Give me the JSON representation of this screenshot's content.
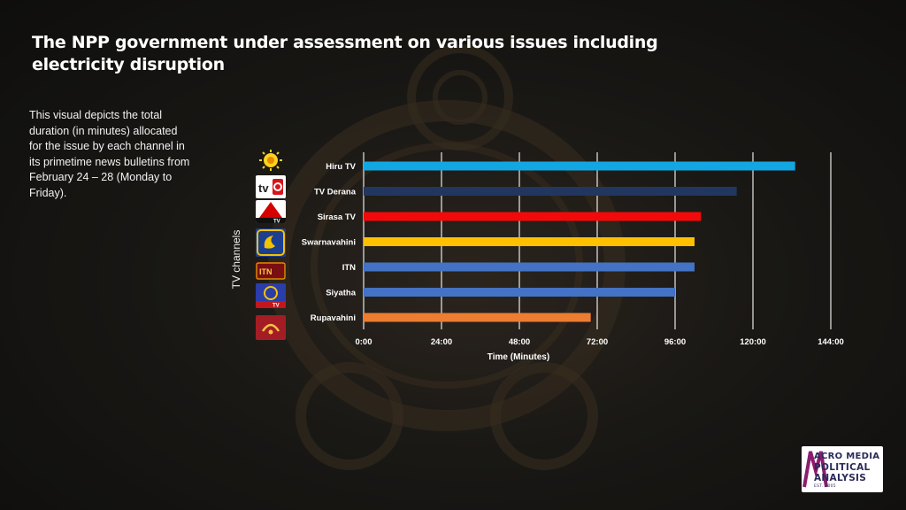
{
  "header": {
    "title": "The NPP government under assessment on various issues including electricity disruption"
  },
  "description": "This visual depicts the total duration  (in minutes) allocated for the issue by each channel in its primetime news bulletins from February 24 – 28 (Monday to Friday).",
  "logos": [
    {
      "icon": "hiru-tv-logo-icon"
    },
    {
      "icon": "tv-derana-logo-icon",
      "text": "tv"
    },
    {
      "icon": "sirasa-tv-logo-icon",
      "text": "TV"
    },
    {
      "icon": "swarnavahini-logo-icon"
    },
    {
      "icon": "itn-logo-icon",
      "text": "ITN"
    },
    {
      "icon": "siyatha-tv-logo-icon",
      "text": "TV"
    },
    {
      "icon": "rupavahini-logo-icon"
    }
  ],
  "chart_data": {
    "type": "bar",
    "orientation": "horizontal",
    "title": "",
    "xlabel": "Time (Minutes)",
    "ylabel": "TV channels",
    "categories": [
      "Hiru TV",
      "TV Derana",
      "Sirasa TV",
      "Swarnavahini",
      "ITN",
      "Siyatha",
      "Rupavahini"
    ],
    "values_minutes": [
      133,
      115,
      104,
      102,
      102,
      96,
      70
    ],
    "bar_colors": [
      "#12a7e3",
      "#22375f",
      "#f20a0a",
      "#ffc000",
      "#4472c4",
      "#4472c4",
      "#ed7d31"
    ],
    "xlim_minutes": [
      0,
      144
    ],
    "x_ticks_minutes": [
      0,
      24,
      48,
      72,
      96,
      120,
      144
    ],
    "x_tick_labels": [
      "0:00",
      "24:00",
      "48:00",
      "72:00",
      "96:00",
      "120:00",
      "144:00"
    ],
    "grid": true,
    "gridline_color": "#ffffff"
  },
  "brand": {
    "line1": "ACRO MEDIA",
    "line2": "POLITICAL",
    "line3": "ANALYSIS",
    "line4": "EST. 2005",
    "accent_color": "#8c1d6e"
  }
}
